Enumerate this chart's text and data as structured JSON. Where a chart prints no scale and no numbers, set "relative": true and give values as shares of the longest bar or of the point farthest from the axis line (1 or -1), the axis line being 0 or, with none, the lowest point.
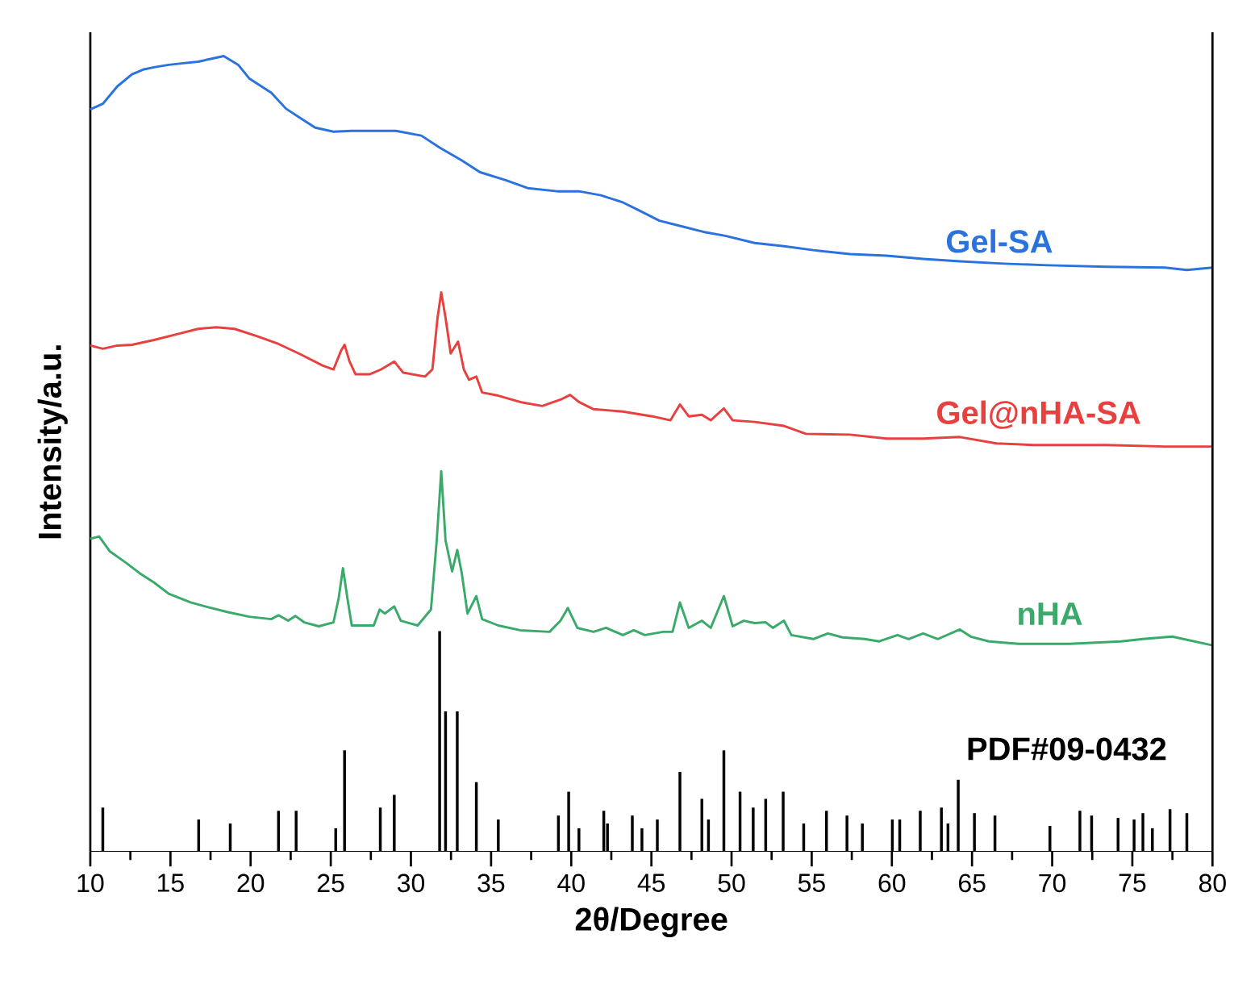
{
  "chart_data": {
    "type": "line",
    "xlabel": "2θ/Degree",
    "ylabel": "Intensity/a.u.",
    "relative": true,
    "xlim": [
      10,
      80
    ],
    "xticks": [
      10,
      15,
      20,
      25,
      30,
      35,
      40,
      45,
      50,
      55,
      60,
      65,
      70,
      75,
      80
    ],
    "marker": "none",
    "line_style": "solid",
    "series": [
      {
        "name": "Gel-SA",
        "color": "#2a72de",
        "x": [
          10,
          10.78,
          11.69,
          12.6,
          13.29,
          13.98,
          14.89,
          15.8,
          16.72,
          17.63,
          18.32,
          19.23,
          19.91,
          21.29,
          22.2,
          23.11,
          24.03,
          25.17,
          26.31,
          27.68,
          29.05,
          30.65,
          31.79,
          33.16,
          34.31,
          35.91,
          37.28,
          39.11,
          40.48,
          41.85,
          43.22,
          44.13,
          45.5,
          46.87,
          48.24,
          49.61,
          51.44,
          53.27,
          55.1,
          57.38,
          59.67,
          61.95,
          64.24,
          66.98,
          69.72,
          73.37,
          77.03,
          78.4,
          80
        ],
        "values": [
          0.933,
          0.94,
          0.962,
          0.977,
          0.983,
          0.986,
          0.989,
          0.991,
          0.993,
          0.997,
          1.0,
          0.989,
          0.972,
          0.954,
          0.934,
          0.922,
          0.91,
          0.905,
          0.906,
          0.906,
          0.906,
          0.9,
          0.885,
          0.869,
          0.854,
          0.844,
          0.834,
          0.83,
          0.83,
          0.825,
          0.816,
          0.807,
          0.793,
          0.786,
          0.779,
          0.774,
          0.765,
          0.761,
          0.756,
          0.751,
          0.749,
          0.745,
          0.742,
          0.739,
          0.737,
          0.735,
          0.734,
          0.731,
          0.734
        ]
      },
      {
        "name": "Gel@nHA-SA",
        "color": "#e8403f",
        "x": [
          10,
          10.78,
          11.69,
          12.6,
          13.98,
          15.35,
          16.72,
          17.86,
          19.0,
          20.37,
          21.74,
          23.11,
          24.48,
          25.17,
          25.63,
          25.86,
          26.17,
          26.54,
          27.45,
          28.14,
          28.96,
          29.51,
          30.88,
          31.34,
          31.66,
          31.89,
          32.16,
          32.48,
          32.94,
          33.3,
          33.62,
          34.08,
          34.44,
          35.45,
          36.82,
          38.19,
          39.33,
          39.93,
          40.48,
          41.39,
          43.22,
          45.05,
          46.19,
          46.78,
          47.33,
          48.15,
          48.7,
          49.52,
          50.07,
          51.44,
          53.27,
          54.64,
          57.38,
          59.67,
          61.95,
          64.24,
          66.52,
          68.81,
          73.37,
          77.03,
          80
        ],
        "values": [
          0.636,
          0.632,
          0.636,
          0.637,
          0.643,
          0.65,
          0.657,
          0.659,
          0.657,
          0.648,
          0.638,
          0.625,
          0.611,
          0.606,
          0.629,
          0.637,
          0.616,
          0.6,
          0.6,
          0.606,
          0.616,
          0.602,
          0.597,
          0.606,
          0.671,
          0.703,
          0.671,
          0.626,
          0.641,
          0.606,
          0.593,
          0.597,
          0.577,
          0.573,
          0.565,
          0.56,
          0.568,
          0.574,
          0.565,
          0.556,
          0.553,
          0.547,
          0.542,
          0.562,
          0.547,
          0.549,
          0.542,
          0.557,
          0.542,
          0.54,
          0.535,
          0.525,
          0.524,
          0.519,
          0.519,
          0.521,
          0.513,
          0.511,
          0.511,
          0.509,
          0.509
        ]
      },
      {
        "name": "nHA",
        "color": "#3aaa6a",
        "x": [
          10,
          10.55,
          11.23,
          12.15,
          13.06,
          13.98,
          14.89,
          16.26,
          17.17,
          18.54,
          19.91,
          21.29,
          21.74,
          22.34,
          22.79,
          23.34,
          24.26,
          25.17,
          25.49,
          25.76,
          26.04,
          26.31,
          27.68,
          28.05,
          28.37,
          28.96,
          29.37,
          30.42,
          31.25,
          31.61,
          31.89,
          32.16,
          32.57,
          32.89,
          33.17,
          33.53,
          34.08,
          34.44,
          35.45,
          36.82,
          38.65,
          39.33,
          39.79,
          40.38,
          41.39,
          42.17,
          43.22,
          43.9,
          44.59,
          45.73,
          46.32,
          46.78,
          47.33,
          48.15,
          48.7,
          49.52,
          50.07,
          50.76,
          51.44,
          52.13,
          52.58,
          53.27,
          53.73,
          55.1,
          56.01,
          56.92,
          58.3,
          59.21,
          60.35,
          61.04,
          61.95,
          62.87,
          64.24,
          64.92,
          66.06,
          67.89,
          71.09,
          74.29,
          75.66,
          77.49,
          80
        ],
        "values": [
          0.393,
          0.396,
          0.377,
          0.364,
          0.35,
          0.338,
          0.324,
          0.313,
          0.308,
          0.301,
          0.295,
          0.292,
          0.297,
          0.29,
          0.296,
          0.288,
          0.283,
          0.288,
          0.318,
          0.356,
          0.318,
          0.284,
          0.284,
          0.304,
          0.299,
          0.308,
          0.29,
          0.284,
          0.304,
          0.391,
          0.478,
          0.391,
          0.352,
          0.379,
          0.35,
          0.299,
          0.321,
          0.292,
          0.284,
          0.278,
          0.276,
          0.29,
          0.306,
          0.281,
          0.276,
          0.281,
          0.272,
          0.278,
          0.272,
          0.276,
          0.276,
          0.313,
          0.281,
          0.29,
          0.281,
          0.321,
          0.283,
          0.29,
          0.287,
          0.288,
          0.281,
          0.29,
          0.272,
          0.267,
          0.274,
          0.269,
          0.267,
          0.264,
          0.272,
          0.267,
          0.274,
          0.267,
          0.279,
          0.27,
          0.264,
          0.261,
          0.261,
          0.264,
          0.267,
          0.27,
          0.259
        ]
      },
      {
        "name": "PDF#09-0432",
        "type": "bar",
        "color": "#000000",
        "x": [
          10.78,
          16.76,
          18.73,
          21.74,
          22.84,
          25.31,
          25.86,
          28.09,
          28.96,
          31.79,
          32.16,
          32.89,
          34.08,
          35.45,
          39.2,
          39.84,
          40.48,
          42.03,
          42.26,
          43.81,
          44.41,
          45.37,
          46.78,
          48.15,
          48.56,
          49.52,
          50.53,
          51.35,
          52.13,
          53.22,
          54.5,
          55.92,
          57.2,
          58.16,
          60.03,
          60.49,
          61.77,
          63.09,
          63.5,
          64.14,
          65.15,
          66.43,
          69.86,
          71.73,
          72.46,
          74.11,
          75.11,
          75.66,
          76.25,
          77.35,
          78.4
        ],
        "values": [
          0.055,
          0.04,
          0.035,
          0.051,
          0.051,
          0.029,
          0.127,
          0.055,
          0.071,
          0.277,
          0.176,
          0.176,
          0.087,
          0.04,
          0.045,
          0.075,
          0.029,
          0.051,
          0.035,
          0.045,
          0.029,
          0.04,
          0.1,
          0.066,
          0.04,
          0.127,
          0.075,
          0.055,
          0.066,
          0.075,
          0.035,
          0.051,
          0.045,
          0.035,
          0.04,
          0.04,
          0.051,
          0.055,
          0.035,
          0.09,
          0.048,
          0.045,
          0.032,
          0.051,
          0.045,
          0.042,
          0.04,
          0.048,
          0.029,
          0.053,
          0.048
        ]
      }
    ]
  }
}
